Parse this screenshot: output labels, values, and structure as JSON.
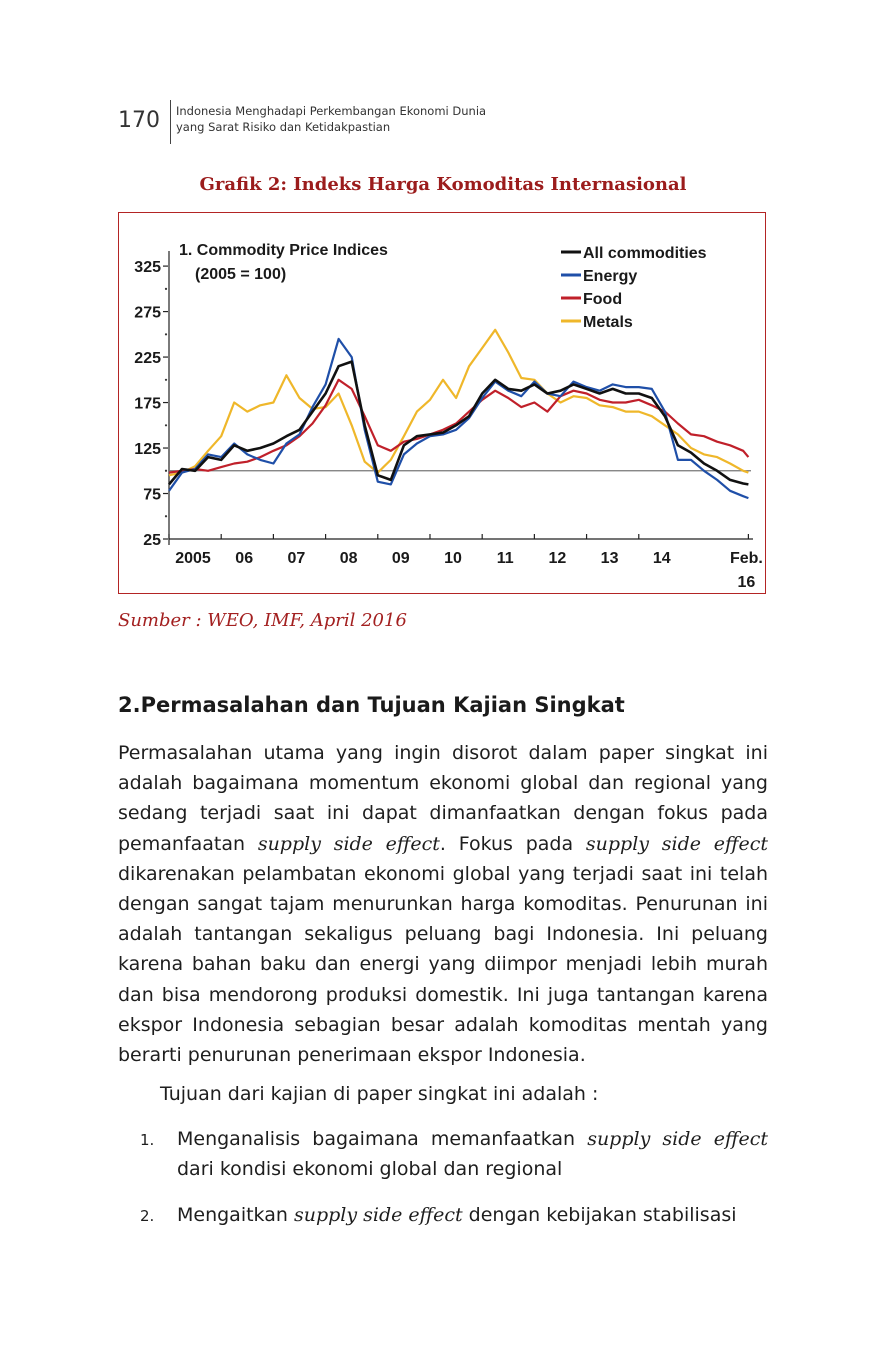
{
  "header": {
    "page_number": "170",
    "running_title_line1": "Indonesia Menghadapi Perkembangan Ekonomi Dunia",
    "running_title_line2": "yang Sarat Risiko dan Ketidakpastian"
  },
  "figure": {
    "caption": "Grafik 2: Indeks Harga Komoditas Internasional",
    "source": "Sumber : WEO, IMF, April 2016"
  },
  "chart_data": {
    "type": "line",
    "title": "1. Commodity Price Indices",
    "subtitle": "(2005 = 100)",
    "xlabel": "",
    "ylabel": "",
    "ylim": [
      25,
      335
    ],
    "y_ticks": [
      "325",
      "275",
      "225",
      "175",
      "125",
      "75",
      "25"
    ],
    "y_tick_values": [
      325,
      275,
      225,
      175,
      125,
      75,
      25
    ],
    "x_ticks": [
      "2005",
      "06",
      "07",
      "08",
      "09",
      "10",
      "11",
      "12",
      "13",
      "14",
      "Feb."
    ],
    "x_tick_values": [
      2005,
      2006,
      2007,
      2008,
      2009,
      2010,
      2011,
      2012,
      2013,
      2014,
      2016.1
    ],
    "x_last_tick_line2": "16",
    "xlim": [
      2005,
      2016.15
    ],
    "reference_line": 100,
    "legend_position": "top-right",
    "series": [
      {
        "name": "All commodities",
        "color": "#111111",
        "x": [
          2005,
          2005.25,
          2005.5,
          2005.75,
          2006,
          2006.25,
          2006.5,
          2006.75,
          2007,
          2007.25,
          2007.5,
          2007.75,
          2008,
          2008.25,
          2008.5,
          2008.75,
          2009,
          2009.25,
          2009.5,
          2009.75,
          2010,
          2010.25,
          2010.5,
          2010.75,
          2011,
          2011.25,
          2011.5,
          2011.75,
          2012,
          2012.25,
          2012.5,
          2012.75,
          2013,
          2013.25,
          2013.5,
          2013.75,
          2014,
          2014.25,
          2014.5,
          2014.75,
          2015,
          2015.25,
          2015.5,
          2015.75,
          2016,
          2016.1
        ],
        "values": [
          85,
          102,
          100,
          115,
          112,
          128,
          122,
          125,
          130,
          138,
          145,
          165,
          185,
          215,
          220,
          150,
          95,
          90,
          128,
          138,
          140,
          142,
          150,
          160,
          185,
          200,
          190,
          188,
          195,
          185,
          188,
          195,
          190,
          185,
          190,
          185,
          185,
          180,
          160,
          128,
          120,
          108,
          100,
          90,
          86,
          85
        ]
      },
      {
        "name": "Energy",
        "color": "#1f4fa8",
        "x": [
          2005,
          2005.25,
          2005.5,
          2005.75,
          2006,
          2006.25,
          2006.5,
          2006.75,
          2007,
          2007.25,
          2007.5,
          2007.75,
          2008,
          2008.25,
          2008.5,
          2008.75,
          2009,
          2009.25,
          2009.5,
          2009.75,
          2010,
          2010.25,
          2010.5,
          2010.75,
          2011,
          2011.25,
          2011.5,
          2011.75,
          2012,
          2012.25,
          2012.5,
          2012.75,
          2013,
          2013.25,
          2013.5,
          2013.75,
          2014,
          2014.25,
          2014.5,
          2014.75,
          2015,
          2015.25,
          2015.5,
          2015.75,
          2016,
          2016.1
        ],
        "values": [
          78,
          98,
          102,
          118,
          115,
          130,
          118,
          112,
          108,
          130,
          140,
          170,
          195,
          245,
          225,
          145,
          88,
          85,
          118,
          130,
          138,
          140,
          145,
          158,
          180,
          198,
          188,
          182,
          198,
          185,
          182,
          198,
          192,
          188,
          195,
          192,
          192,
          190,
          165,
          112,
          112,
          100,
          90,
          78,
          72,
          70
        ]
      },
      {
        "name": "Food",
        "color": "#c0202a",
        "x": [
          2005,
          2005.25,
          2005.5,
          2005.75,
          2006,
          2006.25,
          2006.5,
          2006.75,
          2007,
          2007.25,
          2007.5,
          2007.75,
          2008,
          2008.25,
          2008.5,
          2008.75,
          2009,
          2009.25,
          2009.5,
          2009.75,
          2010,
          2010.25,
          2010.5,
          2010.75,
          2011,
          2011.25,
          2011.5,
          2011.75,
          2012,
          2012.25,
          2012.5,
          2012.75,
          2013,
          2013.25,
          2013.5,
          2013.75,
          2014,
          2014.25,
          2014.5,
          2014.75,
          2015,
          2015.25,
          2015.5,
          2015.75,
          2016,
          2016.1
        ],
        "values": [
          98,
          100,
          102,
          100,
          104,
          108,
          110,
          115,
          122,
          128,
          138,
          152,
          172,
          200,
          190,
          160,
          128,
          122,
          132,
          135,
          140,
          145,
          152,
          165,
          178,
          188,
          180,
          170,
          175,
          165,
          182,
          188,
          185,
          178,
          175,
          175,
          178,
          172,
          165,
          152,
          140,
          138,
          132,
          128,
          122,
          115
        ]
      },
      {
        "name": "Metals",
        "color": "#efb72a",
        "x": [
          2005,
          2005.25,
          2005.5,
          2005.75,
          2006,
          2006.25,
          2006.5,
          2006.75,
          2007,
          2007.25,
          2007.5,
          2007.75,
          2008,
          2008.25,
          2008.5,
          2008.75,
          2009,
          2009.25,
          2009.5,
          2009.75,
          2010,
          2010.25,
          2010.5,
          2010.75,
          2011,
          2011.25,
          2011.5,
          2011.75,
          2012,
          2012.25,
          2012.5,
          2012.75,
          2013,
          2013.25,
          2013.5,
          2013.75,
          2014,
          2014.25,
          2014.5,
          2014.75,
          2015,
          2015.25,
          2015.5,
          2015.75,
          2016,
          2016.1
        ],
        "values": [
          95,
          98,
          105,
          122,
          138,
          175,
          165,
          172,
          175,
          205,
          180,
          168,
          170,
          185,
          150,
          110,
          98,
          112,
          138,
          165,
          178,
          200,
          180,
          215,
          235,
          255,
          230,
          202,
          200,
          185,
          175,
          182,
          180,
          172,
          170,
          165,
          165,
          160,
          150,
          140,
          125,
          118,
          115,
          108,
          100,
          98
        ]
      }
    ]
  },
  "section": {
    "title": "2.Permasalahan dan Tujuan Kajian Singkat",
    "paragraph_part1": "Permasalahan utama yang ingin disorot dalam paper singkat ini adalah bagaimana momentum ekonomi global dan regional yang sedang terjadi saat ini dapat dimanfaatkan dengan fokus  pada pemanfaatan ",
    "paragraph_italic1": "supply side effect",
    "paragraph_part2": ". Fokus pada ",
    "paragraph_italic2": "supply side effect",
    "paragraph_part3": " dikarenakan pelambatan ekonomi global yang terjadi saat ini telah dengan sangat tajam menurunkan harga komoditas. Penurunan ini adalah tantangan sekaligus peluang bagi Indonesia. Ini peluang karena bahan baku dan energi yang diimpor menjadi lebih murah dan bisa mendorong produksi domestik. Ini juga tantangan karena ekspor Indonesia sebagian besar adalah komoditas mentah yang berarti penurunan penerimaan ekspor Indonesia.",
    "intro": "Tujuan dari kajian di paper singkat ini adalah :",
    "list": [
      {
        "num": "1.",
        "pre": "Menganalisis bagaimana memanfaatkan ",
        "italic": "supply side effect",
        "post": " dari  kondisi  ekonomi  global  dan regional"
      },
      {
        "num": "2.",
        "pre": "Mengaitkan ",
        "italic": "supply side effect",
        "post": " dengan kebijakan stabilisasi"
      }
    ]
  }
}
